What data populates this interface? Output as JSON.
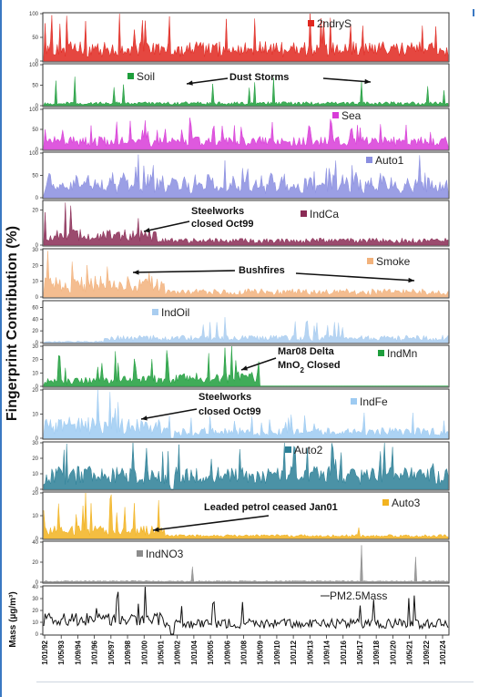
{
  "chart_data": {
    "type": "area",
    "ylabel": "Fingerprint Contribution (%)",
    "x_tick_labels": [
      "1/01/92",
      "1/05/93",
      "1/09/94",
      "1/01/96",
      "1/05/97",
      "1/09/98",
      "1/01/00",
      "1/05/01",
      "1/09/02",
      "1/01/04",
      "1/05/05",
      "1/09/06",
      "1/01/08",
      "1/05/09",
      "1/09/10",
      "1/01/12",
      "1/05/13",
      "1/09/14",
      "1/01/16",
      "1/05/17",
      "1/09/18",
      "1/01/20",
      "1/05/21",
      "1/09/22",
      "1/01/24"
    ],
    "panels": [
      {
        "name": "2ndryS",
        "color": "#e0271f",
        "ylim": [
          0,
          100
        ],
        "yticks": [
          "0",
          "50",
          "100"
        ],
        "pattern": "steady",
        "level": 28,
        "spike": 80
      },
      {
        "name": "Soil",
        "color": "#1e9e3c",
        "ylim": [
          0,
          100
        ],
        "yticks": [
          "0",
          "50",
          "100"
        ],
        "pattern": "sparse",
        "level": 10,
        "spike": 70
      },
      {
        "name": "Sea",
        "color": "#d83cd8",
        "ylim": [
          0,
          100
        ],
        "yticks": [
          "0",
          "50",
          "100"
        ],
        "pattern": "steady",
        "level": 22,
        "spike": 48
      },
      {
        "name": "Auto1",
        "color": "#8a8ee0",
        "ylim": [
          0,
          100
        ],
        "yticks": [
          "0",
          "50",
          "100"
        ],
        "pattern": "seasonal",
        "level": 30,
        "spike": 80
      },
      {
        "name": "IndCa",
        "color": "#8a2b55",
        "ylim": [
          0,
          25
        ],
        "yticks": [
          "0",
          "20"
        ],
        "pattern": "decline",
        "level": 5,
        "spike": 22
      },
      {
        "name": "Smoke",
        "color": "#f2b27c",
        "ylim": [
          0,
          30
        ],
        "yticks": [
          "0",
          "10",
          "20",
          "30"
        ],
        "pattern": "early",
        "level": 6,
        "spike": 20
      },
      {
        "name": "IndOil",
        "color": "#a9cdf0",
        "ylim": [
          0,
          70
        ],
        "yticks": [
          "0",
          "20",
          "40",
          "60"
        ],
        "pattern": "late",
        "level": 8,
        "spike": 35
      },
      {
        "name": "IndMn",
        "color": "#1e9e3c",
        "ylim": [
          0,
          30
        ],
        "yticks": [
          "0",
          "10",
          "20",
          "30"
        ],
        "pattern": "stop08",
        "level": 6,
        "spike": 22
      },
      {
        "name": "IndFe",
        "color": "#9ecbf2",
        "ylim": [
          0,
          20
        ],
        "yticks": [
          "0",
          "10",
          "20"
        ],
        "pattern": "drop99",
        "level": 4,
        "spike": 14
      },
      {
        "name": "Auto2",
        "color": "#2c7f96",
        "ylim": [
          0,
          30
        ],
        "yticks": [
          "0",
          "10",
          "20",
          "30"
        ],
        "pattern": "steady",
        "level": 10,
        "spike": 22
      },
      {
        "name": "Auto3",
        "color": "#f2b320",
        "ylim": [
          0,
          20
        ],
        "yticks": [
          "0",
          "10",
          "20"
        ],
        "pattern": "lead01",
        "level": 3,
        "spike": 18
      },
      {
        "name": "IndNO3",
        "color": "#8c8c8c",
        "ylim": [
          0,
          40
        ],
        "yticks": [
          "0",
          "20",
          "40"
        ],
        "pattern": "rare",
        "level": 1,
        "spike": 38
      },
      {
        "name": "PM2.5Mass",
        "color": "#111111",
        "ylim": [
          0,
          40
        ],
        "yticks": [
          "0",
          "10",
          "20",
          "30",
          "40"
        ],
        "pattern": "mass",
        "level": 8,
        "spike": 30
      }
    ],
    "annotations": [
      {
        "panel": 1,
        "text": [
          "Dust Storms"
        ]
      },
      {
        "panel": 4,
        "text": [
          "Steelworks",
          "closed Oct99"
        ]
      },
      {
        "panel": 5,
        "text": [
          "Bushfires"
        ]
      },
      {
        "panel": 7,
        "text": [
          "Mar08 Delta",
          "MnO2 Closed"
        ]
      },
      {
        "panel": 8,
        "text": [
          "Steelworks",
          "closed Oct99"
        ]
      },
      {
        "panel": 10,
        "text": [
          "Leaded petrol ceased Jan01"
        ]
      }
    ],
    "mass_ylabel": "Mass (µg/m³)"
  }
}
